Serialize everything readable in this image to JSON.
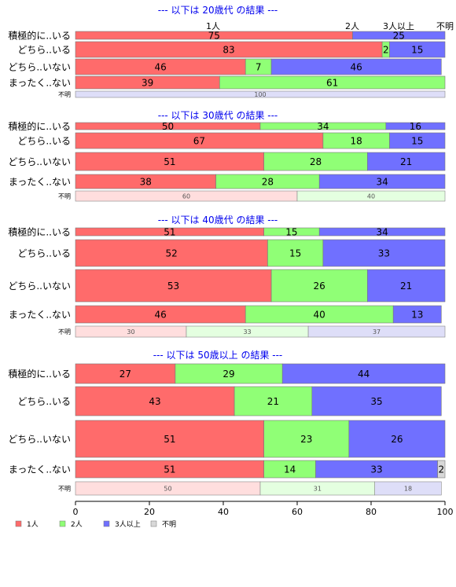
{
  "chart_data": {
    "type": "bar",
    "orientation": "horizontal",
    "stacked": true,
    "xlim": [
      0,
      100
    ],
    "xticks": [
      "0",
      "20",
      "40",
      "60",
      "80",
      "100"
    ],
    "top_labels": [
      "1人",
      "2人",
      "3人以上",
      "不明"
    ],
    "legend": [
      "1人",
      "2人",
      "3人以上",
      "不明"
    ],
    "legend_position": "bottom-left",
    "colors": [
      "#ff6b6b",
      "#90ff76",
      "#7070ff",
      "#d8d8d8"
    ],
    "unknown_colors": [
      "#ffdede",
      "#e4ffe0",
      "#dedef8",
      "#eeeeee"
    ],
    "groups": [
      {
        "title": "--- 以下は 20歳代 の結果 ---",
        "rows": [
          {
            "label": "積極的に..いる",
            "values": [
              75,
              0,
              25,
              0
            ],
            "labels": [
              "75",
              "",
              "25",
              ""
            ]
          },
          {
            "label": "どちら..いる",
            "values": [
              83,
              2,
              15,
              0
            ],
            "labels": [
              "83",
              "2",
              "15",
              ""
            ]
          },
          {
            "label": "どちら..いない",
            "values": [
              46,
              7,
              46,
              0
            ],
            "labels": [
              "46",
              "7",
              "46",
              ""
            ]
          },
          {
            "label": "まったく..ない",
            "values": [
              39,
              61,
              0,
              0
            ],
            "labels": [
              "39",
              "61",
              "",
              ""
            ]
          }
        ],
        "unknown": {
          "label": "不明",
          "values": [
            0,
            0,
            100,
            0
          ],
          "labels": [
            "",
            "",
            "100",
            ""
          ]
        }
      },
      {
        "title": "--- 以下は 30歳代 の結果 ---",
        "rows": [
          {
            "label": "積極的に..いる",
            "values": [
              50,
              34,
              16,
              0
            ],
            "labels": [
              "50",
              "34",
              "16",
              ""
            ]
          },
          {
            "label": "どちら..いる",
            "values": [
              67,
              18,
              15,
              0
            ],
            "labels": [
              "67",
              "18",
              "15",
              ""
            ]
          },
          {
            "label": "どちら..いない",
            "values": [
              51,
              28,
              21,
              0
            ],
            "labels": [
              "51",
              "28",
              "21",
              ""
            ]
          },
          {
            "label": "まったく..ない",
            "values": [
              38,
              28,
              34,
              0
            ],
            "labels": [
              "38",
              "28",
              "34",
              ""
            ]
          }
        ],
        "unknown": {
          "label": "不明",
          "values": [
            60,
            40,
            0,
            0
          ],
          "labels": [
            "60",
            "40",
            "",
            ""
          ]
        }
      },
      {
        "title": "--- 以下は 40歳代 の結果 ---",
        "rows": [
          {
            "label": "積極的に..いる",
            "values": [
              51,
              15,
              34,
              0
            ],
            "labels": [
              "51",
              "15",
              "34",
              ""
            ]
          },
          {
            "label": "どちら..いる",
            "values": [
              52,
              15,
              33,
              0
            ],
            "labels": [
              "52",
              "15",
              "33",
              ""
            ]
          },
          {
            "label": "どちら..いない",
            "values": [
              53,
              26,
              21,
              0
            ],
            "labels": [
              "53",
              "26",
              "21",
              ""
            ]
          },
          {
            "label": "まったく..ない",
            "values": [
              46,
              40,
              13,
              0
            ],
            "labels": [
              "46",
              "40",
              "13",
              ""
            ]
          }
        ],
        "unknown": {
          "label": "不明",
          "values": [
            30,
            33,
            37,
            0
          ],
          "labels": [
            "30",
            "33",
            "37",
            ""
          ]
        }
      },
      {
        "title": "--- 以下は 50歳以上 の結果 ---",
        "rows": [
          {
            "label": "積極的に..いる",
            "values": [
              27,
              29,
              44,
              0
            ],
            "labels": [
              "27",
              "29",
              "44",
              ""
            ]
          },
          {
            "label": "どちら..いる",
            "values": [
              43,
              21,
              35,
              0
            ],
            "labels": [
              "43",
              "21",
              "35",
              ""
            ]
          },
          {
            "label": "どちら..いない",
            "values": [
              51,
              23,
              26,
              0
            ],
            "labels": [
              "51",
              "23",
              "26",
              ""
            ]
          },
          {
            "label": "まったく..ない",
            "values": [
              51,
              14,
              33,
              2
            ],
            "labels": [
              "51",
              "14",
              "33",
              "2"
            ]
          }
        ],
        "unknown": {
          "label": "不明",
          "values": [
            50,
            31,
            18,
            0
          ],
          "labels": [
            "50",
            "31",
            "18",
            ""
          ]
        }
      }
    ]
  }
}
